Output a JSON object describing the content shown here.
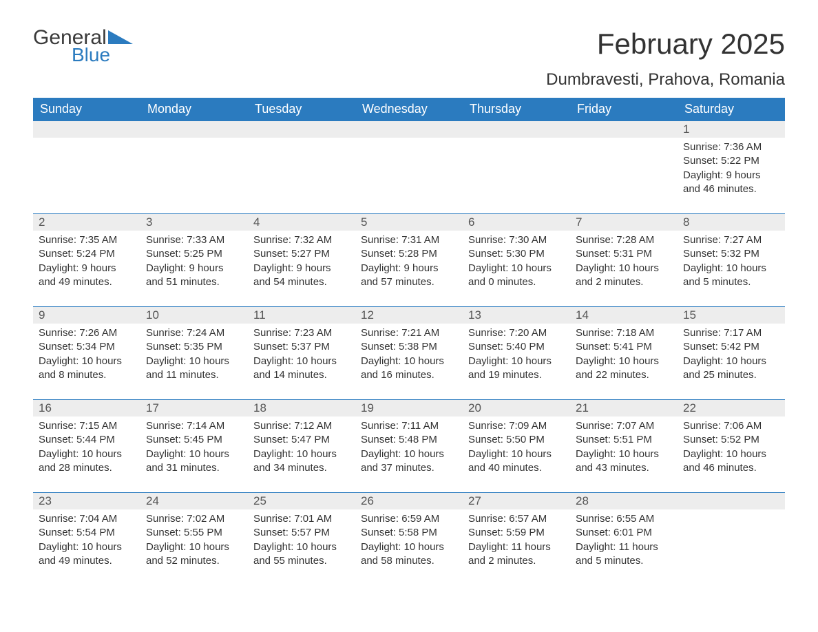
{
  "brand": {
    "general": "General",
    "blue": "Blue"
  },
  "title": "February 2025",
  "location": "Dumbravesti, Prahova, Romania",
  "colors": {
    "header_bg": "#2b7bbf",
    "header_text": "#ffffff",
    "daynum_bg": "#ededed",
    "row_border": "#2b7bbf",
    "body_text": "#333333",
    "logo_blue": "#2b7bbf",
    "background": "#ffffff"
  },
  "weekdays": [
    "Sunday",
    "Monday",
    "Tuesday",
    "Wednesday",
    "Thursday",
    "Friday",
    "Saturday"
  ],
  "weeks": [
    [
      null,
      null,
      null,
      null,
      null,
      null,
      {
        "d": "1",
        "sunrise": "7:36 AM",
        "sunset": "5:22 PM",
        "daylight": "9 hours and 46 minutes."
      }
    ],
    [
      {
        "d": "2",
        "sunrise": "7:35 AM",
        "sunset": "5:24 PM",
        "daylight": "9 hours and 49 minutes."
      },
      {
        "d": "3",
        "sunrise": "7:33 AM",
        "sunset": "5:25 PM",
        "daylight": "9 hours and 51 minutes."
      },
      {
        "d": "4",
        "sunrise": "7:32 AM",
        "sunset": "5:27 PM",
        "daylight": "9 hours and 54 minutes."
      },
      {
        "d": "5",
        "sunrise": "7:31 AM",
        "sunset": "5:28 PM",
        "daylight": "9 hours and 57 minutes."
      },
      {
        "d": "6",
        "sunrise": "7:30 AM",
        "sunset": "5:30 PM",
        "daylight": "10 hours and 0 minutes."
      },
      {
        "d": "7",
        "sunrise": "7:28 AM",
        "sunset": "5:31 PM",
        "daylight": "10 hours and 2 minutes."
      },
      {
        "d": "8",
        "sunrise": "7:27 AM",
        "sunset": "5:32 PM",
        "daylight": "10 hours and 5 minutes."
      }
    ],
    [
      {
        "d": "9",
        "sunrise": "7:26 AM",
        "sunset": "5:34 PM",
        "daylight": "10 hours and 8 minutes."
      },
      {
        "d": "10",
        "sunrise": "7:24 AM",
        "sunset": "5:35 PM",
        "daylight": "10 hours and 11 minutes."
      },
      {
        "d": "11",
        "sunrise": "7:23 AM",
        "sunset": "5:37 PM",
        "daylight": "10 hours and 14 minutes."
      },
      {
        "d": "12",
        "sunrise": "7:21 AM",
        "sunset": "5:38 PM",
        "daylight": "10 hours and 16 minutes."
      },
      {
        "d": "13",
        "sunrise": "7:20 AM",
        "sunset": "5:40 PM",
        "daylight": "10 hours and 19 minutes."
      },
      {
        "d": "14",
        "sunrise": "7:18 AM",
        "sunset": "5:41 PM",
        "daylight": "10 hours and 22 minutes."
      },
      {
        "d": "15",
        "sunrise": "7:17 AM",
        "sunset": "5:42 PM",
        "daylight": "10 hours and 25 minutes."
      }
    ],
    [
      {
        "d": "16",
        "sunrise": "7:15 AM",
        "sunset": "5:44 PM",
        "daylight": "10 hours and 28 minutes."
      },
      {
        "d": "17",
        "sunrise": "7:14 AM",
        "sunset": "5:45 PM",
        "daylight": "10 hours and 31 minutes."
      },
      {
        "d": "18",
        "sunrise": "7:12 AM",
        "sunset": "5:47 PM",
        "daylight": "10 hours and 34 minutes."
      },
      {
        "d": "19",
        "sunrise": "7:11 AM",
        "sunset": "5:48 PM",
        "daylight": "10 hours and 37 minutes."
      },
      {
        "d": "20",
        "sunrise": "7:09 AM",
        "sunset": "5:50 PM",
        "daylight": "10 hours and 40 minutes."
      },
      {
        "d": "21",
        "sunrise": "7:07 AM",
        "sunset": "5:51 PM",
        "daylight": "10 hours and 43 minutes."
      },
      {
        "d": "22",
        "sunrise": "7:06 AM",
        "sunset": "5:52 PM",
        "daylight": "10 hours and 46 minutes."
      }
    ],
    [
      {
        "d": "23",
        "sunrise": "7:04 AM",
        "sunset": "5:54 PM",
        "daylight": "10 hours and 49 minutes."
      },
      {
        "d": "24",
        "sunrise": "7:02 AM",
        "sunset": "5:55 PM",
        "daylight": "10 hours and 52 minutes."
      },
      {
        "d": "25",
        "sunrise": "7:01 AM",
        "sunset": "5:57 PM",
        "daylight": "10 hours and 55 minutes."
      },
      {
        "d": "26",
        "sunrise": "6:59 AM",
        "sunset": "5:58 PM",
        "daylight": "10 hours and 58 minutes."
      },
      {
        "d": "27",
        "sunrise": "6:57 AM",
        "sunset": "5:59 PM",
        "daylight": "11 hours and 2 minutes."
      },
      {
        "d": "28",
        "sunrise": "6:55 AM",
        "sunset": "6:01 PM",
        "daylight": "11 hours and 5 minutes."
      },
      null
    ]
  ],
  "labels": {
    "sunrise": "Sunrise: ",
    "sunset": "Sunset: ",
    "daylight": "Daylight: "
  }
}
